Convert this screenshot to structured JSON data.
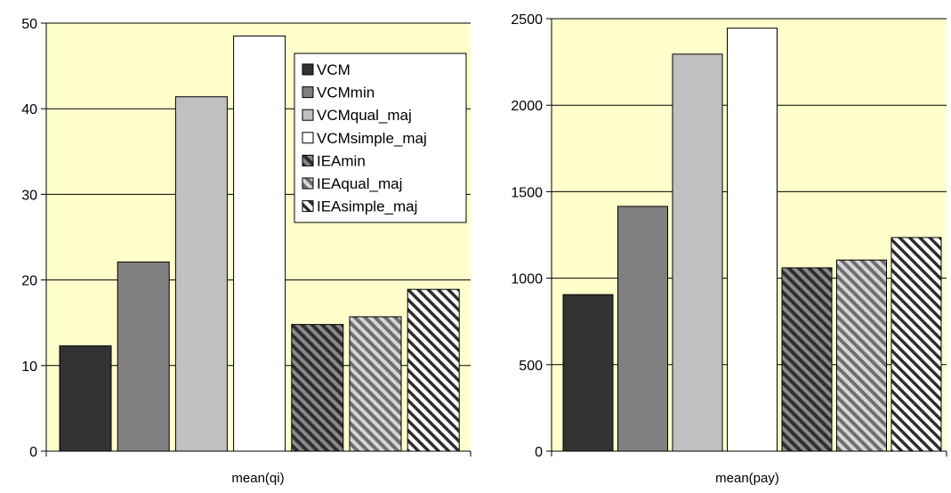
{
  "chart_data": [
    {
      "type": "bar",
      "xlabel": "mean(qi)",
      "ylabel": "",
      "ylim": [
        0,
        50
      ],
      "yticks": [
        0,
        10,
        20,
        30,
        40,
        50
      ],
      "grid": true,
      "plot_background": "#ffffcc",
      "legend_position": "top-right",
      "series": [
        {
          "name": "VCM",
          "value": 12.3,
          "color": "#333333",
          "pattern": "solid"
        },
        {
          "name": "VCMmin",
          "value": 22.1,
          "color": "#808080",
          "pattern": "solid"
        },
        {
          "name": "VCMqual_maj",
          "value": 41.4,
          "color": "#c0c0c0",
          "pattern": "solid"
        },
        {
          "name": "VCMsimple_maj",
          "value": 48.5,
          "color": "#ffffff",
          "pattern": "solid"
        },
        {
          "name": "IEAmin",
          "value": 14.8,
          "color": "#555555",
          "pattern": "hatch"
        },
        {
          "name": "IEAqual_maj",
          "value": 15.7,
          "color": "#a8a8a8",
          "pattern": "hatch"
        },
        {
          "name": "IEAsimple_maj",
          "value": 18.9,
          "color": "#ffffff",
          "pattern": "hatch"
        }
      ]
    },
    {
      "type": "bar",
      "xlabel": "mean(pay)",
      "ylabel": "",
      "ylim": [
        0,
        2500
      ],
      "yticks": [
        0,
        500,
        1000,
        1500,
        2000,
        2500
      ],
      "grid": true,
      "plot_background": "#ffffcc",
      "legend_position": "none",
      "series": [
        {
          "name": "VCM",
          "value": 905,
          "color": "#333333",
          "pattern": "solid"
        },
        {
          "name": "VCMmin",
          "value": 1415,
          "color": "#808080",
          "pattern": "solid"
        },
        {
          "name": "VCMqual_maj",
          "value": 2295,
          "color": "#c0c0c0",
          "pattern": "solid"
        },
        {
          "name": "VCMsimple_maj",
          "value": 2445,
          "color": "#ffffff",
          "pattern": "solid"
        },
        {
          "name": "IEAmin",
          "value": 1060,
          "color": "#555555",
          "pattern": "hatch"
        },
        {
          "name": "IEAqual_maj",
          "value": 1105,
          "color": "#a8a8a8",
          "pattern": "hatch"
        },
        {
          "name": "IEAsimple_maj",
          "value": 1235,
          "color": "#ffffff",
          "pattern": "hatch"
        }
      ]
    }
  ]
}
